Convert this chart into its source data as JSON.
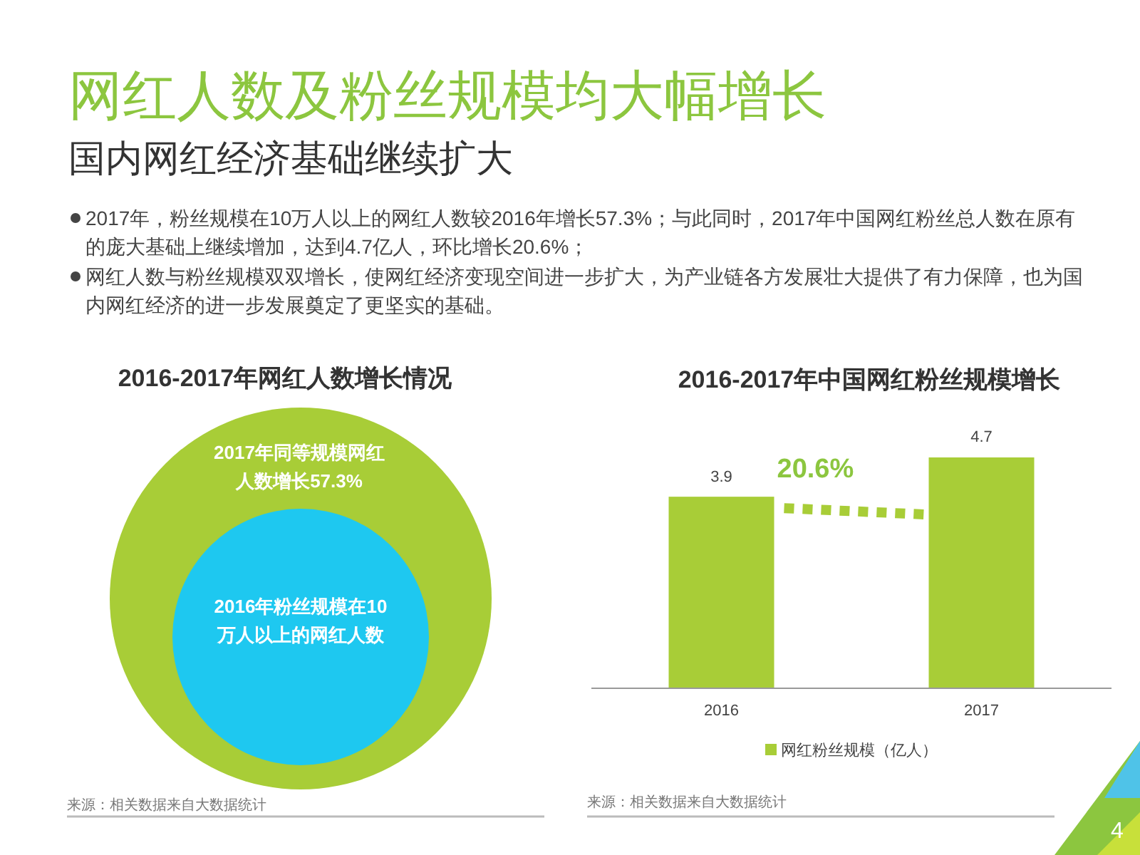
{
  "chart_data": [
    {
      "type": "other",
      "title": "网红人数及粉丝规模均大幅增长",
      "subtitle": "国内网红经济基础继续扩大",
      "annotations": [
        "2017年，粉丝规模在10万人以上的网红人数较2016年增长57.3%；与此同时，2017年中国网红粉丝总人数在原有的庞大基础上继续增加，达到4.7亿人，环比增长20.6%；",
        "网红人数与粉丝规模双双增长，使网红经济变现空间进一步扩大，为产业链各方发展壮大提供了有力保障，也为国内网红经济的进一步发展奠定了更坚实的基础。",
        "4"
      ]
    },
    {
      "type": "other",
      "title": "2016-2017年网红人数增长情况",
      "annotations": [
        "2017年同等规模网红人数增长57.3%",
        "2016年粉丝规模在10万人以上的网红人数",
        "来源：相关数据来自大数据统计"
      ]
    },
    {
      "type": "bar",
      "title": "2016-2017年中国网红粉丝规模增长",
      "categories": [
        "2016",
        "2017"
      ],
      "series": [
        {
          "name": "网红粉丝规模（亿人）",
          "color": "#a8cd37",
          "values": [
            3.9,
            4.7
          ]
        }
      ],
      "data_labels": true,
      "legend": "bottom",
      "annotations": [
        "20.6%",
        "来源：相关数据来自大数据统计"
      ]
    }
  ]
}
